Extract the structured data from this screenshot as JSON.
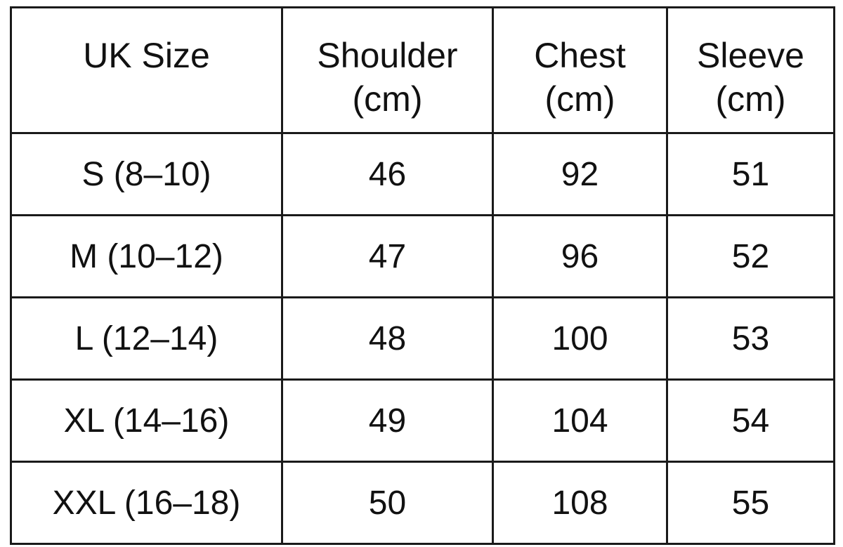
{
  "table": {
    "headers": [
      [
        "UK Size"
      ],
      [
        "Shoulder",
        "(cm)"
      ],
      [
        "Chest",
        "(cm)"
      ],
      [
        "Sleeve",
        "(cm)"
      ]
    ],
    "rows": [
      [
        "S (8–10)",
        "46",
        "92",
        "51"
      ],
      [
        "M (10–12)",
        "47",
        "96",
        "52"
      ],
      [
        "L (12–14)",
        "48",
        "100",
        "53"
      ],
      [
        "XL (14–16)",
        "49",
        "104",
        "54"
      ],
      [
        "XXL (16–18)",
        "50",
        "108",
        "55"
      ]
    ]
  }
}
